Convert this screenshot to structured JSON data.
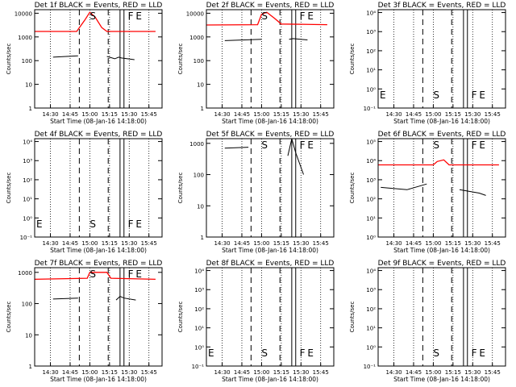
{
  "figure": {
    "x_ticks": [
      "14:30",
      "14:45",
      "15:00",
      "15:15",
      "15:30",
      "15:45"
    ],
    "x_label": "Start Time (08-Jan-16 14:18:00)",
    "y_label": "Counts/sec",
    "marker_labels": {
      "start": "S",
      "flare": "F",
      "end": "E"
    },
    "colors": {
      "events": "#000000",
      "lld": "#ff0000"
    }
  },
  "chart_data": [
    {
      "type": "line",
      "title": "Det 1f BLACK = Events, RED = LLD",
      "y_scale": "log",
      "y_ticks": [
        "1",
        "10",
        "100",
        "1000",
        "10000"
      ],
      "marker_labels": [
        "S",
        "F",
        "E"
      ],
      "series": [
        {
          "name": "Events",
          "x": [
            "14:32",
            "14:51",
            "14:53",
            "15:01",
            "15:10",
            "15:13",
            "15:19",
            "15:22",
            "15:24",
            "15:34"
          ],
          "y": [
            140,
            160,
            null,
            null,
            null,
            150,
            120,
            140,
            130,
            110
          ]
        },
        {
          "name": "LLD",
          "x": [
            "14:18",
            "14:50",
            "14:56",
            "15:00",
            "15:04",
            "15:09",
            "15:13",
            "15:50"
          ],
          "y": [
            1700,
            1700,
            5000,
            11000,
            7000,
            2500,
            1700,
            1700
          ]
        }
      ]
    },
    {
      "type": "line",
      "title": "Det 2f BLACK = Events, RED = LLD",
      "y_scale": "log",
      "y_ticks": [
        "1",
        "10",
        "100",
        "1000",
        "10000"
      ],
      "marker_labels": [
        "S",
        "F",
        "E"
      ],
      "series": [
        {
          "name": "Events",
          "x": [
            "14:32",
            "15:00",
            "15:03",
            "15:15",
            "15:21",
            "15:24",
            "15:35"
          ],
          "y": [
            700,
            800,
            null,
            null,
            800,
            850,
            750
          ]
        },
        {
          "name": "LLD",
          "x": [
            "14:18",
            "14:57",
            "15:00",
            "15:04",
            "15:10",
            "15:15",
            "15:50"
          ],
          "y": [
            3200,
            3300,
            9000,
            11000,
            6000,
            3500,
            3300
          ]
        }
      ]
    },
    {
      "type": "line",
      "title": "Det 3f BLACK = Events, RED = LLD",
      "y_scale": "log",
      "y_ticks": [
        "10⁻¹",
        "10⁰",
        "10¹",
        "10²",
        "10³",
        "10⁴"
      ],
      "marker_labels": [
        "E",
        "S",
        "F",
        "E"
      ],
      "series": []
    },
    {
      "type": "line",
      "title": "Det 4f BLACK = Events, RED = LLD",
      "y_scale": "log",
      "y_ticks": [
        "10⁻¹",
        "10⁰",
        "10¹",
        "10²",
        "10³",
        "10⁴"
      ],
      "marker_labels": [
        "E",
        "S",
        "F",
        "E"
      ],
      "series": []
    },
    {
      "type": "line",
      "title": "Det 5f BLACK = Events, RED = LLD",
      "y_scale": "log",
      "y_ticks": [
        "1",
        "10",
        "100",
        "1000"
      ],
      "marker_labels": [
        "S",
        "F",
        "E"
      ],
      "series": [
        {
          "name": "Events",
          "x": [
            "14:32",
            "14:50",
            "15:00",
            "15:13",
            "15:20",
            "15:23",
            "15:26",
            "15:32"
          ],
          "y": [
            700,
            750,
            null,
            null,
            400,
            1400,
            500,
            100
          ]
        }
      ]
    },
    {
      "type": "line",
      "title": "Det 6f BLACK = Events, RED = LLD",
      "y_scale": "log",
      "y_ticks": [
        "10⁰",
        "10¹",
        "10²",
        "10³",
        "10⁴",
        "10⁵"
      ],
      "marker_labels": [
        "S",
        "F",
        "E"
      ],
      "series": [
        {
          "name": "Events",
          "x": [
            "14:20",
            "14:40",
            "14:55",
            "15:13",
            "15:20",
            "15:35",
            "15:40"
          ],
          "y": [
            400,
            300,
            600,
            null,
            300,
            200,
            150
          ]
        },
        {
          "name": "LLD",
          "x": [
            "14:18",
            "15:00",
            "15:03",
            "15:08",
            "15:12",
            "15:50"
          ],
          "y": [
            6000,
            6000,
            9000,
            11000,
            6000,
            6000
          ]
        }
      ]
    },
    {
      "type": "line",
      "title": "Det 7f BLACK = Events, RED = LLD",
      "y_scale": "log",
      "y_ticks": [
        "1",
        "10",
        "100",
        "1000"
      ],
      "marker_labels": [
        "S",
        "F",
        "E"
      ],
      "series": [
        {
          "name": "Events",
          "x": [
            "14:32",
            "14:51",
            "14:54",
            "15:14",
            "15:20",
            "15:23",
            "15:26",
            "15:35"
          ],
          "y": [
            140,
            150,
            null,
            null,
            130,
            170,
            150,
            130
          ]
        },
        {
          "name": "LLD",
          "x": [
            "14:18",
            "14:58",
            "15:00",
            "15:13",
            "15:16",
            "15:50"
          ],
          "y": [
            600,
            650,
            1000,
            1000,
            650,
            600
          ]
        }
      ]
    },
    {
      "type": "line",
      "title": "Det 8f BLACK = Events, RED = LLD",
      "y_scale": "log",
      "y_ticks": [
        "10⁻¹",
        "10⁰",
        "10¹",
        "10²",
        "10³",
        "10⁴"
      ],
      "marker_labels": [
        "E",
        "S",
        "F",
        "E"
      ],
      "series": []
    },
    {
      "type": "line",
      "title": "Det 9f BLACK = Events, RED = LLD",
      "y_scale": "log",
      "y_ticks": [
        "10⁻¹",
        "10⁰",
        "10¹",
        "10²",
        "10³",
        "10⁴"
      ],
      "marker_labels": [
        "S",
        "F",
        "E"
      ],
      "series": []
    }
  ]
}
